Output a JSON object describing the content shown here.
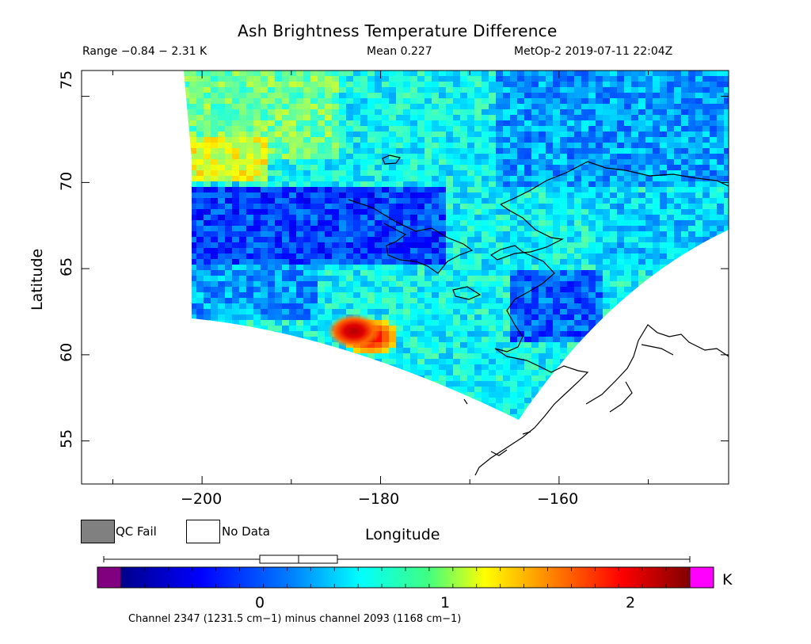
{
  "header": {
    "title": "Ash Brightness Temperature Difference",
    "range": "Range −0.84 − 2.31 K",
    "mean": "Mean 0.227",
    "sensor_time": "MetOp-2 2019-07-11 22:04Z"
  },
  "axes": {
    "x_label": "Longitude",
    "y_label": "Latitude",
    "x_ticks": [
      "−200",
      "−180",
      "−160"
    ],
    "y_ticks": [
      "75",
      "70",
      "65",
      "60",
      "55"
    ],
    "x_range": [
      -213.5,
      -141
    ],
    "y_range": [
      52.5,
      76.5
    ]
  },
  "legend": {
    "qc_fail_label": "QC Fail",
    "no_data_label": "No Data",
    "qc_fail_color": "#808080",
    "no_data_color": "#ffffff"
  },
  "colorbar": {
    "unit": "K",
    "ticks": [
      "0",
      "1",
      "2"
    ],
    "range": [
      -0.84,
      2.31
    ],
    "under_color": "#800080",
    "over_color": "#ff00ff",
    "boxplot": {
      "min": -0.84,
      "q1": 0.0,
      "median": 0.21,
      "q3": 0.43,
      "max": 2.31
    }
  },
  "caption": "Channel 2347 (1231.5 cm−1) minus channel 2093 (1168 cm−1)",
  "map": {
    "hotspot_label": "",
    "hotspot": {
      "lon": -181.5,
      "lat": 61.2,
      "value": 2.2
    }
  }
}
